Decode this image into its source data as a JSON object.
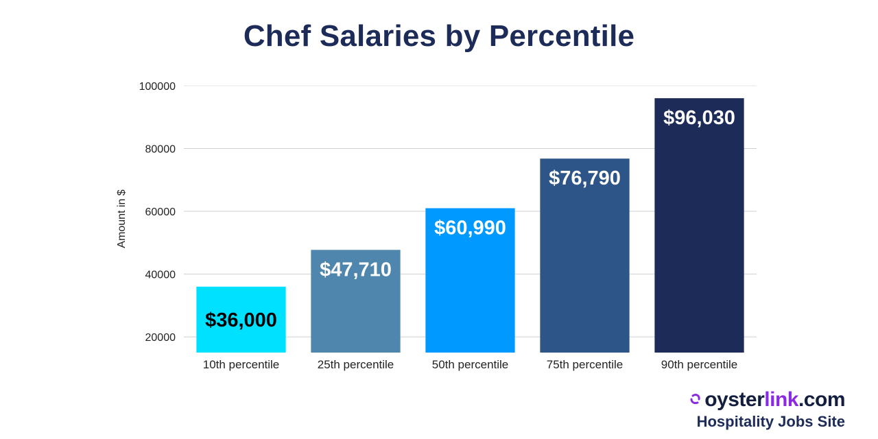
{
  "chart_data": {
    "type": "bar",
    "title": "Chef Salaries by Percentile",
    "xlabel": "",
    "ylabel": "Amount in $",
    "ylim": [
      15000,
      100000
    ],
    "yticks": [
      20000,
      40000,
      60000,
      80000,
      100000
    ],
    "grid": true,
    "categories": [
      "10th percentile",
      "25th percentile",
      "50th percentile",
      "75th percentile",
      "90th percentile"
    ],
    "values": [
      36000,
      47710,
      60990,
      76790,
      96030
    ],
    "data_labels": [
      "$36,000",
      "$47,710",
      "$60,990",
      "$76,790",
      "$96,030"
    ],
    "bar_colors": [
      "#00e0ff",
      "#4e86ad",
      "#0099ff",
      "#2e5587",
      "#1d2b59"
    ],
    "label_colors": [
      "#000000",
      "#ffffff",
      "#ffffff",
      "#ffffff",
      "#ffffff"
    ]
  },
  "brand": {
    "name_part_a": "oyster",
    "name_part_b": "link",
    "name_part_c": ".com",
    "tagline": "Hospitality Jobs Site",
    "icon": "oysterlink-logo-icon",
    "color_primary": "#141f3f",
    "color_accent": "#8a2be2"
  }
}
